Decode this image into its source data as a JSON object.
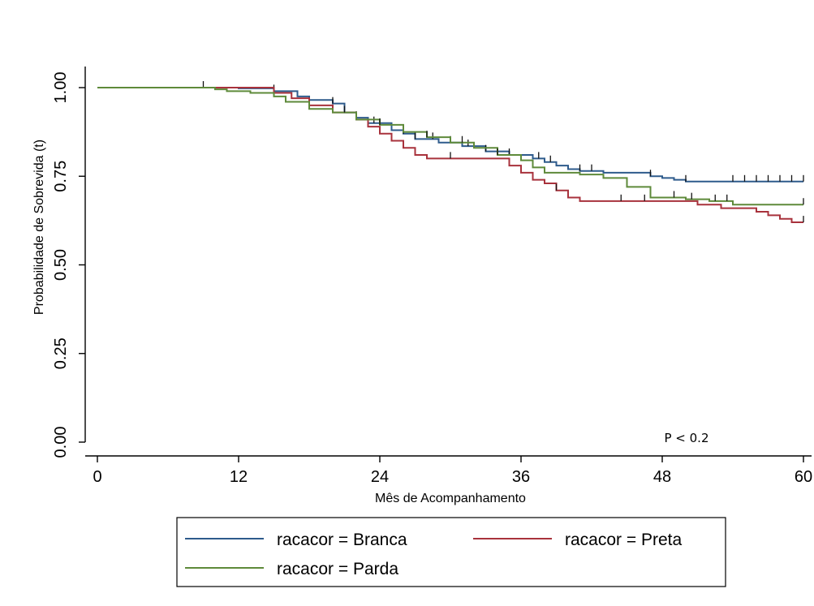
{
  "chart_data": {
    "type": "line",
    "subtype": "kaplan-meier step",
    "title": "",
    "xlabel": "Mês de Acompanhamento",
    "ylabel": "Probabilidade de Sobrevida (t)",
    "xlim": [
      0,
      60
    ],
    "ylim": [
      0,
      1
    ],
    "xticks": [
      0,
      12,
      24,
      36,
      48,
      60
    ],
    "xtick_labels": [
      "0",
      "12",
      "24",
      "36",
      "48",
      "60"
    ],
    "yticks": [
      0,
      0.25,
      0.5,
      0.75,
      1
    ],
    "ytick_labels": [
      "0.00",
      "0.25",
      "0.50",
      "0.75",
      "1.00"
    ],
    "grid": false,
    "legend_position": "bottom",
    "annotation": "P < 0.2",
    "series": [
      {
        "name": "racacor = Branca",
        "color": "#2e5b8c",
        "x": [
          0,
          12,
          15,
          17,
          18,
          20,
          21,
          22,
          23,
          25,
          26,
          27,
          29,
          31,
          33,
          35,
          37,
          38,
          39,
          40,
          41,
          43,
          47,
          48,
          49,
          50,
          52,
          53,
          55,
          57,
          60
        ],
        "y": [
          1.0,
          0.998,
          0.99,
          0.975,
          0.965,
          0.955,
          0.93,
          0.915,
          0.9,
          0.88,
          0.87,
          0.855,
          0.845,
          0.835,
          0.82,
          0.81,
          0.8,
          0.79,
          0.78,
          0.77,
          0.765,
          0.76,
          0.75,
          0.745,
          0.74,
          0.735,
          0.735,
          0.735,
          0.735,
          0.735,
          0.735
        ],
        "censor_x": [
          9,
          15,
          20,
          22,
          23.5,
          26,
          27,
          28.5,
          30,
          31.5,
          33,
          35,
          37.5,
          38.5,
          41,
          42,
          47,
          50,
          54,
          55,
          56,
          57,
          58,
          59,
          60
        ]
      },
      {
        "name": "racacor = Preta",
        "color": "#a8323c",
        "x": [
          0,
          15,
          16.5,
          18,
          20,
          22,
          23,
          24,
          25,
          26,
          27,
          28,
          32,
          34,
          35,
          36,
          37,
          38,
          39,
          40,
          41,
          42,
          47,
          50,
          51,
          53,
          56,
          57,
          58,
          59,
          60
        ],
        "y": [
          1.0,
          0.985,
          0.97,
          0.95,
          0.93,
          0.91,
          0.89,
          0.87,
          0.85,
          0.83,
          0.81,
          0.8,
          0.8,
          0.8,
          0.78,
          0.76,
          0.74,
          0.73,
          0.71,
          0.69,
          0.68,
          0.68,
          0.68,
          0.68,
          0.67,
          0.66,
          0.65,
          0.64,
          0.63,
          0.62,
          0.62
        ],
        "censor_x": [
          30,
          39,
          44.5,
          46.5,
          60
        ]
      },
      {
        "name": "racacor = Parda",
        "color": "#5e8a3a",
        "x": [
          0,
          10,
          11,
          13,
          15,
          16,
          18,
          20,
          22,
          24,
          26,
          28,
          30,
          32,
          34,
          36,
          37,
          38,
          41,
          43,
          44,
          45,
          47,
          50,
          52,
          54,
          55,
          57,
          60
        ],
        "y": [
          1.0,
          0.995,
          0.99,
          0.985,
          0.975,
          0.96,
          0.94,
          0.93,
          0.91,
          0.895,
          0.875,
          0.86,
          0.845,
          0.83,
          0.81,
          0.795,
          0.775,
          0.76,
          0.755,
          0.745,
          0.745,
          0.72,
          0.69,
          0.685,
          0.68,
          0.67,
          0.67,
          0.67,
          0.67
        ],
        "censor_x": [
          21,
          24,
          28,
          31,
          34,
          49,
          50.5,
          52.5,
          53.5,
          60
        ]
      }
    ],
    "legend_layout": [
      {
        "series": 0,
        "row": 0,
        "col": 0
      },
      {
        "series": 1,
        "row": 0,
        "col": 1
      },
      {
        "series": 2,
        "row": 1,
        "col": 0
      }
    ]
  }
}
